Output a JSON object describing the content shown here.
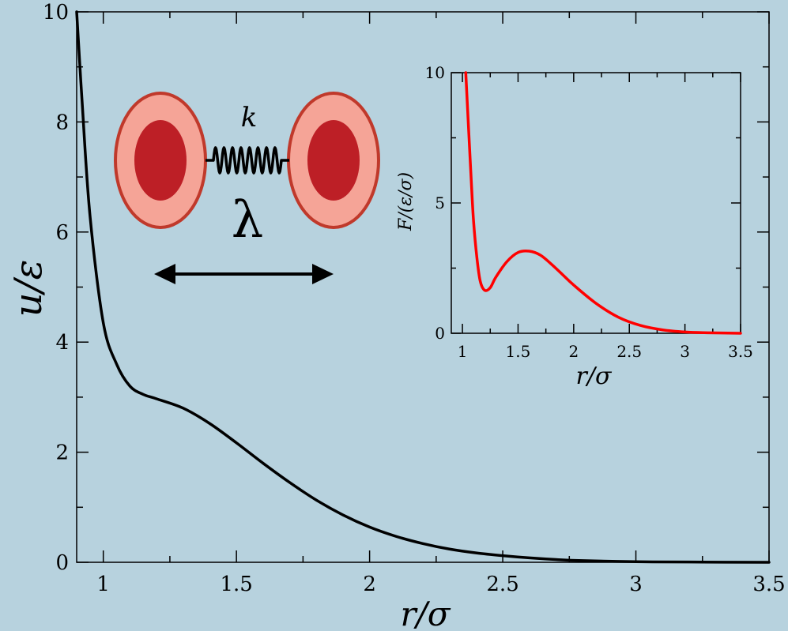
{
  "colors": {
    "background": "#b7d2de",
    "main_curve": "#000000",
    "inset_curve": "#ff0000",
    "bead_outer": "#f5a497",
    "bead_inner": "#bd1f26",
    "bead_rim": "#c0392b"
  },
  "chart_data": [
    {
      "type": "line",
      "xlabel": "r/σ",
      "ylabel": "u/ε",
      "xlim": [
        0.9,
        3.5
      ],
      "ylim": [
        0,
        10
      ],
      "xticks": [
        1,
        1.5,
        2,
        2.5,
        3,
        3.5
      ],
      "xtick_labels": [
        "1",
        "1.5",
        "2",
        "2.5",
        "3",
        "3.5"
      ],
      "yticks": [
        0,
        2,
        4,
        6,
        8,
        10
      ],
      "ytick_labels": [
        "0",
        "2",
        "4",
        "6",
        "8",
        "10"
      ],
      "grid": false,
      "series": [
        {
          "color": "#000000",
          "x": [
            0.9,
            0.92,
            0.95,
            1.0,
            1.05,
            1.1,
            1.15,
            1.2,
            1.3,
            1.4,
            1.5,
            1.6,
            1.7,
            1.8,
            1.9,
            2.0,
            2.1,
            2.2,
            2.3,
            2.4,
            2.5,
            2.6,
            2.7,
            2.8,
            3.0,
            3.2,
            3.5
          ],
          "y": [
            10.0,
            8.4,
            6.3,
            4.35,
            3.6,
            3.2,
            3.05,
            2.97,
            2.8,
            2.52,
            2.17,
            1.8,
            1.45,
            1.13,
            0.86,
            0.64,
            0.47,
            0.34,
            0.24,
            0.17,
            0.12,
            0.08,
            0.05,
            0.03,
            0.01,
            0.005,
            0.0
          ]
        }
      ]
    },
    {
      "type": "line",
      "xlabel": "r/σ",
      "ylabel": "F/(ε/σ)",
      "xlim": [
        0.9,
        3.5
      ],
      "ylim": [
        0,
        10
      ],
      "xticks": [
        1,
        1.5,
        2,
        2.5,
        3,
        3.5
      ],
      "xtick_labels": [
        "1",
        "1.5",
        "2",
        "2.5",
        "3",
        "3.5"
      ],
      "yticks": [
        0,
        5,
        10
      ],
      "ytick_labels": [
        "0",
        "5",
        "10"
      ],
      "grid": false,
      "series": [
        {
          "color": "#ff0000",
          "x": [
            1.03,
            1.05,
            1.08,
            1.1,
            1.13,
            1.16,
            1.2,
            1.25,
            1.3,
            1.4,
            1.5,
            1.6,
            1.7,
            1.8,
            1.9,
            2.0,
            2.2,
            2.4,
            2.6,
            2.8,
            3.0,
            3.2,
            3.5
          ],
          "y": [
            10.0,
            8.3,
            5.8,
            4.3,
            2.9,
            2.0,
            1.65,
            1.75,
            2.15,
            2.75,
            3.1,
            3.15,
            3.0,
            2.65,
            2.25,
            1.85,
            1.15,
            0.62,
            0.3,
            0.13,
            0.05,
            0.02,
            0.0
          ]
        }
      ]
    }
  ],
  "illustration": {
    "spring_label": "k",
    "length_label": "λ"
  }
}
